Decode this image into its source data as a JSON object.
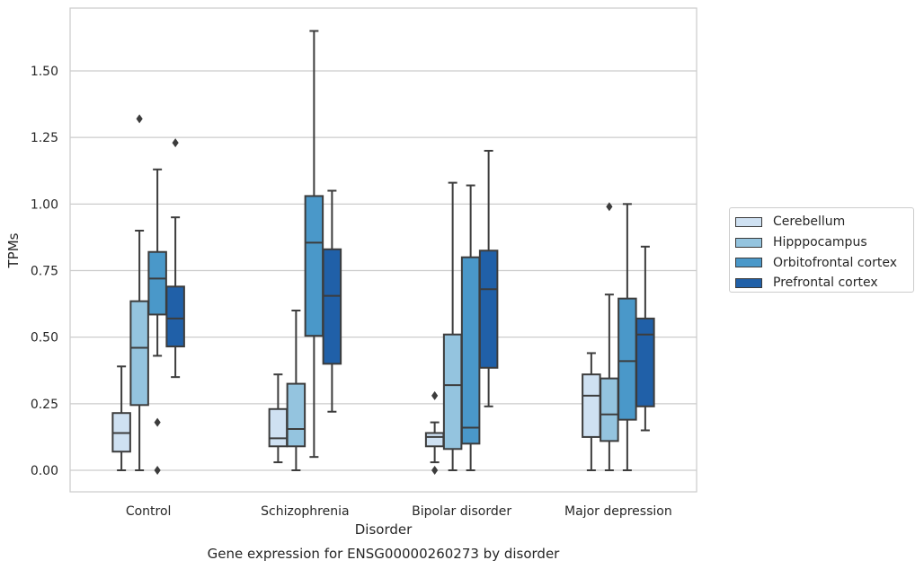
{
  "chart_data": {
    "type": "boxplot",
    "title": "Gene expression for ENSG00000260273 by disorder",
    "xlabel": "Disorder",
    "ylabel": "TPMs",
    "ylim": [
      -0.08,
      1.73
    ],
    "yticks": [
      "0.00",
      "0.25",
      "0.50",
      "0.75",
      "1.00",
      "1.25",
      "1.50"
    ],
    "ytick_values": [
      0,
      0.25,
      0.5,
      0.75,
      1.0,
      1.25,
      1.5
    ],
    "grid": true,
    "legend_position": "right",
    "categories": [
      "Control",
      "Schizophrenia",
      "Bipolar disorder",
      "Major depression"
    ],
    "series": [
      {
        "name": "Cerebellum",
        "color": "#cfe1f2",
        "boxes": [
          {
            "whislo": 0.0,
            "q1": 0.07,
            "med": 0.14,
            "q3": 0.215,
            "whishi": 0.39,
            "fliers": []
          },
          {
            "whislo": 0.03,
            "q1": 0.09,
            "med": 0.12,
            "q3": 0.23,
            "whishi": 0.36,
            "fliers": []
          },
          {
            "whislo": 0.03,
            "q1": 0.09,
            "med": 0.125,
            "q3": 0.14,
            "whishi": 0.18,
            "fliers": [
              0.28,
              0.0
            ]
          },
          {
            "whislo": 0.0,
            "q1": 0.125,
            "med": 0.28,
            "q3": 0.36,
            "whishi": 0.44,
            "fliers": []
          }
        ]
      },
      {
        "name": "Hipppocampus",
        "color": "#94c4df",
        "boxes": [
          {
            "whislo": 0.0,
            "q1": 0.245,
            "med": 0.46,
            "q3": 0.635,
            "whishi": 0.9,
            "fliers": [
              1.32
            ]
          },
          {
            "whislo": 0.0,
            "q1": 0.09,
            "med": 0.155,
            "q3": 0.325,
            "whishi": 0.6,
            "fliers": []
          },
          {
            "whislo": 0.0,
            "q1": 0.08,
            "med": 0.32,
            "q3": 0.51,
            "whishi": 1.08,
            "fliers": []
          },
          {
            "whislo": 0.0,
            "q1": 0.11,
            "med": 0.21,
            "q3": 0.345,
            "whishi": 0.66,
            "fliers": [
              0.99
            ]
          }
        ]
      },
      {
        "name": "Orbitofrontal cortex",
        "color": "#4a98c9",
        "boxes": [
          {
            "whislo": 0.43,
            "q1": 0.585,
            "med": 0.72,
            "q3": 0.82,
            "whishi": 1.13,
            "fliers": [
              0.18,
              0.0
            ]
          },
          {
            "whislo": 0.05,
            "q1": 0.505,
            "med": 0.855,
            "q3": 1.03,
            "whishi": 1.65,
            "fliers": []
          },
          {
            "whislo": 0.0,
            "q1": 0.1,
            "med": 0.16,
            "q3": 0.8,
            "whishi": 1.07,
            "fliers": []
          },
          {
            "whislo": 0.0,
            "q1": 0.19,
            "med": 0.41,
            "q3": 0.645,
            "whishi": 1.0,
            "fliers": []
          }
        ]
      },
      {
        "name": "Prefrontal cortex",
        "color": "#2060a8",
        "boxes": [
          {
            "whislo": 0.35,
            "q1": 0.465,
            "med": 0.57,
            "q3": 0.69,
            "whishi": 0.95,
            "fliers": [
              1.23
            ]
          },
          {
            "whislo": 0.22,
            "q1": 0.4,
            "med": 0.655,
            "q3": 0.83,
            "whishi": 1.05,
            "fliers": []
          },
          {
            "whislo": 0.24,
            "q1": 0.385,
            "med": 0.68,
            "q3": 0.825,
            "whishi": 1.2,
            "fliers": []
          },
          {
            "whislo": 0.15,
            "q1": 0.24,
            "med": 0.51,
            "q3": 0.57,
            "whishi": 0.84,
            "fliers": []
          }
        ]
      }
    ]
  }
}
